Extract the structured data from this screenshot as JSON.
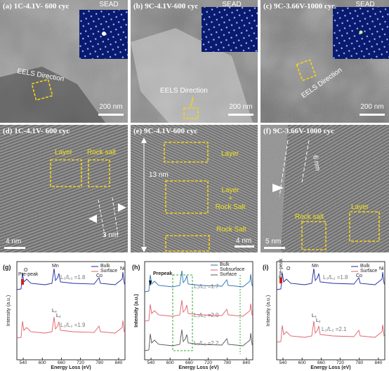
{
  "tem": {
    "a": {
      "title": "(a) 1C-4.1V- 600 cyc",
      "inset": "SEAD",
      "direction": "EELS Direction",
      "scale": "200 nm"
    },
    "b": {
      "title": "(b) 9C-4.1V-600 cyc",
      "inset": "SEAD",
      "direction": "EELS Direction",
      "scale": "200 nm"
    },
    "c": {
      "title": "(c) 9C-3.66V-1000 cyc",
      "inset": "SEAD",
      "direction": "EELS Direction",
      "scale": "200 nm"
    }
  },
  "hrtem": {
    "d": {
      "title": "(d) 1C-4.1V- 600 cyc",
      "layer": "Layer",
      "rocksalt": "Rock salt",
      "spacing": "3 nm",
      "scale": "4 nm"
    },
    "e": {
      "title": "(e) 9C-4.1V-600 cyc",
      "layer": "Layer",
      "mixed": [
        "Layer",
        "+",
        "Rock Salt"
      ],
      "rocksalt": "Rock Salt",
      "thickness": "13 nm",
      "scale": "4 nm"
    },
    "f": {
      "title": "(f) 9C-3.66V-1000 cyc",
      "spacing": "6 nm",
      "rocksalt": "Rock salt",
      "layer": "Layer",
      "scale": "5 nm"
    }
  },
  "spectra": {
    "g": {
      "label": "(g)",
      "legend": [
        "Bulk",
        "Surface"
      ],
      "prepeak": "Pre-peak",
      "o": "O",
      "mn": "Mn",
      "co": "Co",
      "ni": "Ni",
      "l3": "L₃",
      "l2": "L₂",
      "ratios": [
        "L₃/L₂ =1.8",
        "L₃/L₂ =1.9"
      ],
      "ylabel": "Intensity (a.u.)",
      "xlabel": "Energy Loss (eV)",
      "xlim": [
        520,
        860
      ],
      "xticks": [
        540,
        600,
        660,
        720,
        780,
        840
      ]
    },
    "h": {
      "label": "(h)",
      "legend": [
        "Bulk",
        "Subsurface",
        "Surface"
      ],
      "prepeak": "Prepeak",
      "ratios": [
        "L₃/L₂ =1.7",
        "L₃/L₂ =2.0",
        "L₃/L₂ =2.2"
      ],
      "ylabel": "Intensity (a.u.)",
      "xlabel": "Energy Loss (eV)",
      "xlim": [
        520,
        860
      ],
      "xticks": [
        540,
        600,
        660,
        720,
        780,
        840
      ]
    },
    "i": {
      "label": "(i)",
      "legend": [
        "Bulk",
        "Surface"
      ],
      "prepeak": "Pre-peak",
      "o": "O",
      "mn": "Mn",
      "co": "Co",
      "ni": "Ni",
      "l3": "L₃",
      "l2": "L₂",
      "ratios": [
        "L₃/L₂ =1.8",
        "L₃/L₂ =2.1"
      ],
      "ylabel": "Intensity (a.u.)",
      "xlabel": "Energy Loss (eV)",
      "xlim": [
        520,
        860
      ],
      "xticks": [
        540,
        600,
        660,
        720,
        780,
        840
      ]
    }
  }
}
